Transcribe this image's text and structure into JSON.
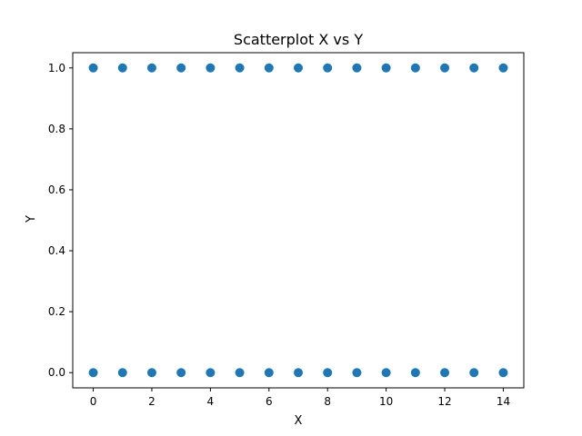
{
  "chart_data": {
    "type": "scatter",
    "title": "Scatterplot X vs Y",
    "xlabel": "X",
    "ylabel": "Y",
    "xlim": [
      -0.7,
      14.7
    ],
    "ylim": [
      -0.05,
      1.05
    ],
    "x_ticks": [
      0,
      2,
      4,
      6,
      8,
      10,
      12,
      14
    ],
    "x_tick_labels": [
      "0",
      "2",
      "4",
      "6",
      "8",
      "10",
      "12",
      "14"
    ],
    "y_ticks": [
      0.0,
      0.2,
      0.4,
      0.6,
      0.8,
      1.0
    ],
    "y_tick_labels": [
      "0.0",
      "0.2",
      "0.4",
      "0.6",
      "0.8",
      "1.0"
    ],
    "grid": false,
    "marker_color": "#1f77b4",
    "series": [
      {
        "x": [
          0,
          1,
          2,
          3,
          4,
          5,
          6,
          7,
          8,
          9,
          10,
          11,
          12,
          13,
          14,
          0,
          1,
          2,
          3,
          4,
          5,
          6,
          7,
          8,
          9,
          10,
          11,
          12,
          13,
          14
        ],
        "y": [
          1,
          1,
          1,
          1,
          1,
          1,
          1,
          1,
          1,
          1,
          1,
          1,
          1,
          1,
          1,
          0,
          0,
          0,
          0,
          0,
          0,
          0,
          0,
          0,
          0,
          0,
          0,
          0,
          0,
          0
        ]
      }
    ]
  }
}
